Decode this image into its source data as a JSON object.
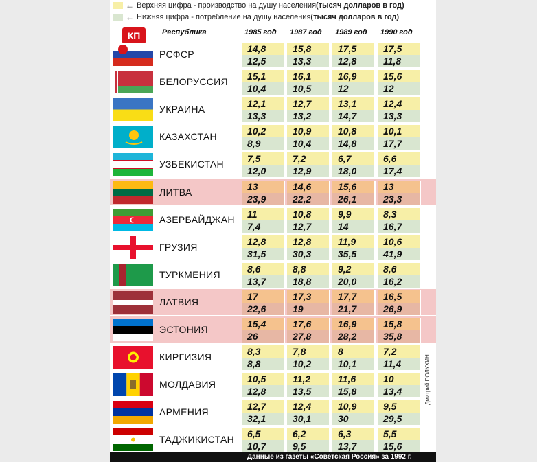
{
  "legend": {
    "top_text": "Верхняя цифра - производство на душу населения ",
    "top_bold": "(тысяч долларов в год)",
    "bottom_text": "Нижняя цифра - потребление на душу населения ",
    "bottom_bold": "(тысяч долларов в год)",
    "top_color": "#f7efa7",
    "bottom_color": "#d9e6d0"
  },
  "logo": "КП",
  "header": {
    "republic": "Республика",
    "years": [
      "1985 год",
      "1987 год",
      "1989 год",
      "1990 год"
    ]
  },
  "colors": {
    "prod_normal": "#f7efa7",
    "cons_normal": "#d9e6d0",
    "prod_baltic": "#f5c28e",
    "cons_baltic": "#e7b7a4"
  },
  "chart_data": {
    "type": "table",
    "columns": [
      "1985 год",
      "1987 год",
      "1989 год",
      "1990 год"
    ],
    "rows": [
      {
        "name": "РСФСР",
        "production": [
          "14,8",
          "15,8",
          "17,5",
          "17,5"
        ],
        "consumption": [
          "12,5",
          "13,3",
          "12,8",
          "11,8"
        ]
      },
      {
        "name": "БЕЛОРУССИЯ",
        "production": [
          "15,1",
          "16,1",
          "16,9",
          "15,6"
        ],
        "consumption": [
          "10,4",
          "10,5",
          "12",
          "12"
        ]
      },
      {
        "name": "УКРАИНА",
        "production": [
          "12,1",
          "12,7",
          "13,1",
          "12,4"
        ],
        "consumption": [
          "13,3",
          "13,2",
          "14,7",
          "13,3"
        ]
      },
      {
        "name": "КАЗАХСТАН",
        "production": [
          "10,2",
          "10,9",
          "10,8",
          "10,1"
        ],
        "consumption": [
          "8,9",
          "10,4",
          "14,8",
          "17,7"
        ]
      },
      {
        "name": "УЗБЕКИСТАН",
        "production": [
          "7,5",
          "7,2",
          "6,7",
          "6,6"
        ],
        "consumption": [
          "12,0",
          "12,9",
          "18,0",
          "17,4"
        ]
      },
      {
        "name": "ЛИТВА",
        "production": [
          "13",
          "14,6",
          "15,6",
          "13"
        ],
        "consumption": [
          "23,9",
          "22,2",
          "26,1",
          "23,3"
        ]
      },
      {
        "name": "АЗЕРБАЙДЖАН",
        "production": [
          "11",
          "10,8",
          "9,9",
          "8,3"
        ],
        "consumption": [
          "7,4",
          "12,7",
          "14",
          "16,7"
        ]
      },
      {
        "name": "ГРУЗИЯ",
        "production": [
          "12,8",
          "12,8",
          "11,9",
          "10,6"
        ],
        "consumption": [
          "31,5",
          "30,3",
          "35,5",
          "41,9"
        ]
      },
      {
        "name": "ТУРКМЕНИЯ",
        "production": [
          "8,6",
          "8,8",
          "9,2",
          "8,6"
        ],
        "consumption": [
          "13,7",
          "18,8",
          "20,0",
          "16,2"
        ]
      },
      {
        "name": "ЛАТВИЯ",
        "production": [
          "17",
          "17,3",
          "17,7",
          "16,5"
        ],
        "consumption": [
          "22,6",
          "19",
          "21,7",
          "26,9"
        ]
      },
      {
        "name": "ЭСТОНИЯ",
        "production": [
          "15,4",
          "17,6",
          "16,9",
          "15,8"
        ],
        "consumption": [
          "26",
          "27,8",
          "28,2",
          "35,8"
        ]
      },
      {
        "name": "КИРГИЗИЯ",
        "production": [
          "8,3",
          "7,8",
          "8",
          "7,2"
        ],
        "consumption": [
          "8,8",
          "10,2",
          "10,1",
          "11,4"
        ]
      },
      {
        "name": "МОЛДАВИЯ",
        "production": [
          "10,5",
          "11,2",
          "11,6",
          "10"
        ],
        "consumption": [
          "12,8",
          "13,5",
          "15,8",
          "13,4"
        ]
      },
      {
        "name": "АРМЕНИЯ",
        "production": [
          "12,7",
          "12,4",
          "10,9",
          "9,5"
        ],
        "consumption": [
          "32,1",
          "30,1",
          "30",
          "29,5"
        ]
      },
      {
        "name": "ТАДЖИКИСТАН",
        "production": [
          "6,5",
          "6,2",
          "6,3",
          "5,5"
        ],
        "consumption": [
          "10,7",
          "9,5",
          "13,7",
          "15,6"
        ]
      }
    ]
  },
  "footer": "Данные из газеты «Советская Россия» за 1992 г.",
  "credit": "Дмитрий ПОЛУХИН"
}
